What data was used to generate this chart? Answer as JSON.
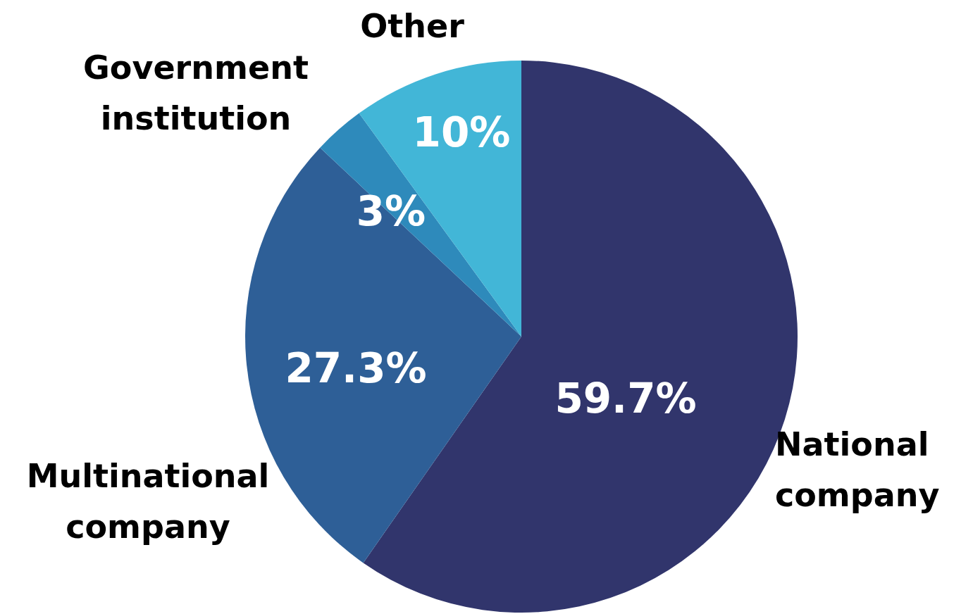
{
  "chart_data": {
    "type": "pie",
    "categories": [
      "National company",
      "Multinational company",
      "Government institution",
      "Other"
    ],
    "values": [
      59.7,
      27.3,
      3,
      10
    ],
    "colors": [
      "#31356c",
      "#2e5f97",
      "#2e8abb",
      "#42b6d7"
    ],
    "value_labels": [
      "59.7%",
      "27.3%",
      "3%",
      "10%"
    ]
  }
}
